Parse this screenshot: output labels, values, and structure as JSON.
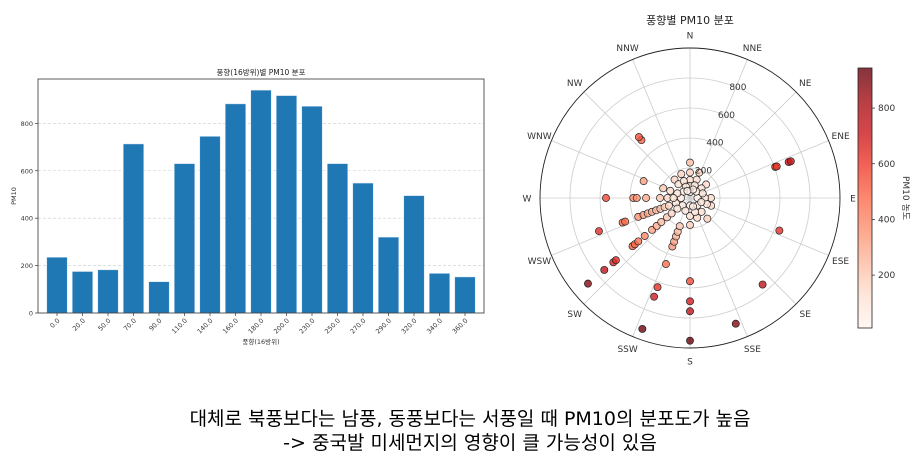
{
  "chart_data": [
    {
      "type": "bar",
      "title": "풍향(16방위)별 PM10 분포",
      "xlabel": "풍향(16방위)",
      "ylabel": "PM10",
      "categories": [
        "0.0",
        "20.0",
        "50.0",
        "70.0",
        "90.0",
        "110.0",
        "140.0",
        "160.0",
        "180.0",
        "200.0",
        "230.0",
        "250.0",
        "270.0",
        "290.0",
        "320.0",
        "340.0",
        "360.0"
      ],
      "values": [
        235,
        175,
        182,
        713,
        132,
        630,
        745,
        882,
        940,
        917,
        872,
        630,
        548,
        320,
        495,
        167,
        152
      ],
      "ylim": [
        0,
        987
      ],
      "yticks": [
        0,
        200,
        400,
        600,
        800
      ],
      "grid": "y-dashed",
      "color": "#1f77b4"
    },
    {
      "type": "scatter",
      "subtype": "polar",
      "title": "풍향별 PM10 분포",
      "direction_labels": [
        "N",
        "NNE",
        "NE",
        "ENE",
        "E",
        "ESE",
        "SE",
        "SSE",
        "S",
        "SSW",
        "SW",
        "WSW",
        "W",
        "WNW",
        "NW",
        "NNW"
      ],
      "rticks": [
        200,
        400,
        600,
        800
      ],
      "rlim": [
        0,
        1000
      ],
      "colormap": "Reds",
      "colorbar": {
        "label": "PM10 농도",
        "ticks": [
          200,
          400,
          600,
          800
        ],
        "range": [
          10,
          944
        ]
      },
      "points_dir_value": [
        [
          70,
          605
        ],
        [
          70,
          615
        ],
        [
          70,
          700
        ],
        [
          70,
          715
        ],
        [
          110,
          634
        ],
        [
          140,
          753
        ],
        [
          160,
          892
        ],
        [
          180,
          951
        ],
        [
          180,
          755
        ],
        [
          180,
          689
        ],
        [
          180,
          555
        ],
        [
          180,
          180
        ],
        [
          180,
          120
        ],
        [
          200,
          929
        ],
        [
          200,
          700
        ],
        [
          200,
          633
        ],
        [
          200,
          469
        ],
        [
          200,
          344
        ],
        [
          200,
          310
        ],
        [
          200,
          273
        ],
        [
          200,
          240
        ],
        [
          200,
          200
        ],
        [
          230,
          888
        ],
        [
          230,
          746
        ],
        [
          230,
          667
        ],
        [
          230,
          645
        ],
        [
          230,
          500
        ],
        [
          230,
          480
        ],
        [
          230,
          450
        ],
        [
          230,
          394
        ],
        [
          230,
          330
        ],
        [
          230,
          290
        ],
        [
          230,
          250
        ],
        [
          230,
          200
        ],
        [
          230,
          160
        ],
        [
          250,
          646
        ],
        [
          250,
          478
        ],
        [
          250,
          460
        ],
        [
          250,
          367
        ],
        [
          250,
          330
        ],
        [
          250,
          300
        ],
        [
          250,
          270
        ],
        [
          250,
          240
        ],
        [
          250,
          210
        ],
        [
          250,
          180
        ],
        [
          250,
          150
        ],
        [
          270,
          560
        ],
        [
          270,
          378
        ],
        [
          270,
          355
        ],
        [
          270,
          293
        ],
        [
          270,
          200
        ],
        [
          270,
          150
        ],
        [
          290,
          329
        ],
        [
          290,
          190
        ],
        [
          290,
          140
        ],
        [
          320,
          504
        ],
        [
          320,
          530
        ],
        [
          320,
          160
        ],
        [
          320,
          120
        ],
        [
          0,
          236
        ],
        [
          0,
          170
        ],
        [
          0,
          120
        ],
        [
          0,
          80
        ],
        [
          20,
          180
        ],
        [
          20,
          130
        ],
        [
          20,
          90
        ],
        [
          50,
          140
        ],
        [
          50,
          100
        ],
        [
          90,
          140
        ],
        [
          90,
          100
        ],
        [
          110,
          150
        ],
        [
          110,
          120
        ],
        [
          140,
          180
        ],
        [
          140,
          120
        ],
        [
          160,
          140
        ],
        [
          160,
          100
        ],
        [
          340,
          170
        ],
        [
          340,
          120
        ],
        [
          340,
          80
        ],
        [
          0,
          40
        ],
        [
          90,
          50
        ],
        [
          180,
          50
        ],
        [
          270,
          60
        ],
        [
          45,
          60
        ],
        [
          135,
          70
        ],
        [
          225,
          70
        ],
        [
          315,
          60
        ],
        [
          20,
          60
        ],
        [
          110,
          80
        ],
        [
          200,
          90
        ],
        [
          250,
          100
        ],
        [
          290,
          90
        ],
        [
          340,
          50
        ],
        [
          160,
          60
        ],
        [
          70,
          90
        ],
        [
          230,
          110
        ],
        [
          270,
          110
        ]
      ]
    }
  ],
  "caption": {
    "line1": "대체로 북풍보다는 남풍, 동풍보다는 서풍일 때 PM10의 분포도가 높음",
    "line2": "-> 중국발 미세먼지의 영향이 클 가능성이 있음"
  }
}
